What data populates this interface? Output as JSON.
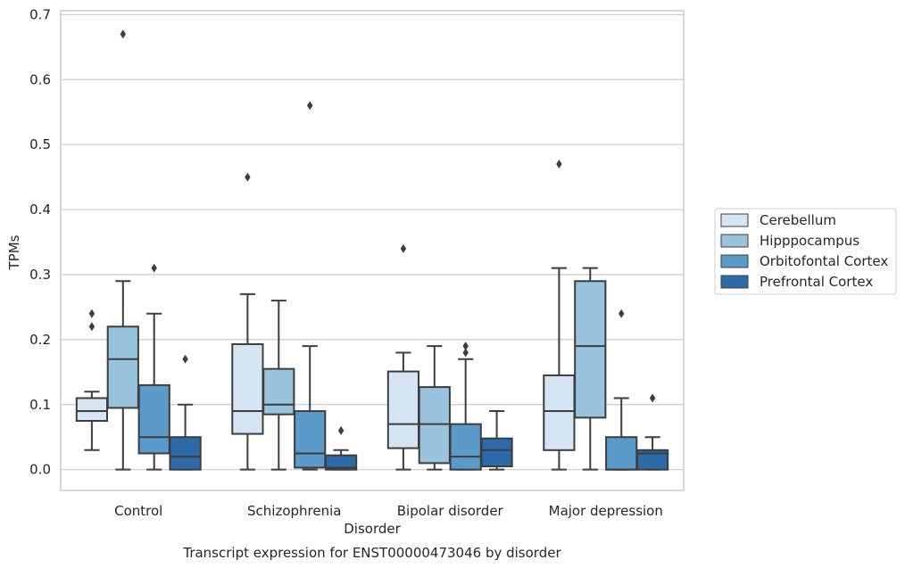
{
  "chart_data": {
    "type": "box",
    "xlabel": "Disorder",
    "ylabel": "TPMs",
    "caption": "Transcript expression for ENST00000473046 by disorder",
    "ylim": [
      -0.032,
      0.706
    ],
    "yticks": [
      0.0,
      0.1,
      0.2,
      0.3,
      0.4,
      0.5,
      0.6,
      0.7
    ],
    "ytick_labels": [
      "0.0",
      "0.1",
      "0.2",
      "0.3",
      "0.4",
      "0.5",
      "0.6",
      "0.7"
    ],
    "grid": "horizontal",
    "legend_position": "right",
    "categories": [
      "Control",
      "Schizophrenia",
      "Bipolar disorder",
      "Major depression"
    ],
    "series": [
      {
        "name": "Cerebellum",
        "color": "#d6e5f4",
        "boxes": [
          {
            "whisker_low": 0.03,
            "q1": 0.075,
            "median": 0.09,
            "q3": 0.11,
            "whisker_high": 0.12,
            "outliers": [
              0.22,
              0.24
            ]
          },
          {
            "whisker_low": 0.0,
            "q1": 0.055,
            "median": 0.09,
            "q3": 0.193,
            "whisker_high": 0.27,
            "outliers": [
              0.45
            ]
          },
          {
            "whisker_low": 0.0,
            "q1": 0.033,
            "median": 0.07,
            "q3": 0.151,
            "whisker_high": 0.18,
            "outliers": [
              0.34
            ]
          },
          {
            "whisker_low": 0.0,
            "q1": 0.03,
            "median": 0.09,
            "q3": 0.145,
            "whisker_high": 0.31,
            "outliers": [
              0.47
            ]
          }
        ]
      },
      {
        "name": "Hipppocampus",
        "color": "#9ac3dd",
        "boxes": [
          {
            "whisker_low": 0.0,
            "q1": 0.095,
            "median": 0.17,
            "q3": 0.22,
            "whisker_high": 0.29,
            "outliers": [
              0.67
            ]
          },
          {
            "whisker_low": 0.0,
            "q1": 0.085,
            "median": 0.1,
            "q3": 0.155,
            "whisker_high": 0.26,
            "outliers": []
          },
          {
            "whisker_low": 0.0,
            "q1": 0.01,
            "median": 0.07,
            "q3": 0.127,
            "whisker_high": 0.19,
            "outliers": []
          },
          {
            "whisker_low": 0.0,
            "q1": 0.08,
            "median": 0.19,
            "q3": 0.29,
            "whisker_high": 0.31,
            "outliers": []
          }
        ]
      },
      {
        "name": "Orbitofontal Cortex",
        "color": "#5a9bc9",
        "boxes": [
          {
            "whisker_low": 0.0,
            "q1": 0.025,
            "median": 0.05,
            "q3": 0.13,
            "whisker_high": 0.24,
            "outliers": [
              0.31
            ]
          },
          {
            "whisker_low": 0.0,
            "q1": 0.003,
            "median": 0.025,
            "q3": 0.09,
            "whisker_high": 0.19,
            "outliers": [
              0.56
            ]
          },
          {
            "whisker_low": 0.0,
            "q1": 0.0,
            "median": 0.02,
            "q3": 0.07,
            "whisker_high": 0.17,
            "outliers": [
              0.18,
              0.19
            ]
          },
          {
            "whisker_low": 0.0,
            "q1": 0.0,
            "median": 0.0,
            "q3": 0.05,
            "whisker_high": 0.11,
            "outliers": [
              0.24
            ]
          }
        ]
      },
      {
        "name": "Prefrontal Cortex",
        "color": "#2d6aa8",
        "boxes": [
          {
            "whisker_low": 0.0,
            "q1": 0.0,
            "median": 0.02,
            "q3": 0.05,
            "whisker_high": 0.1,
            "outliers": [
              0.17
            ]
          },
          {
            "whisker_low": 0.0,
            "q1": 0.0,
            "median": 0.003,
            "q3": 0.022,
            "whisker_high": 0.03,
            "outliers": [
              0.06
            ]
          },
          {
            "whisker_low": 0.0,
            "q1": 0.005,
            "median": 0.03,
            "q3": 0.048,
            "whisker_high": 0.09,
            "outliers": []
          },
          {
            "whisker_low": 0.0,
            "q1": 0.0,
            "median": 0.025,
            "q3": 0.03,
            "whisker_high": 0.05,
            "outliers": [
              0.11
            ]
          }
        ]
      }
    ]
  }
}
